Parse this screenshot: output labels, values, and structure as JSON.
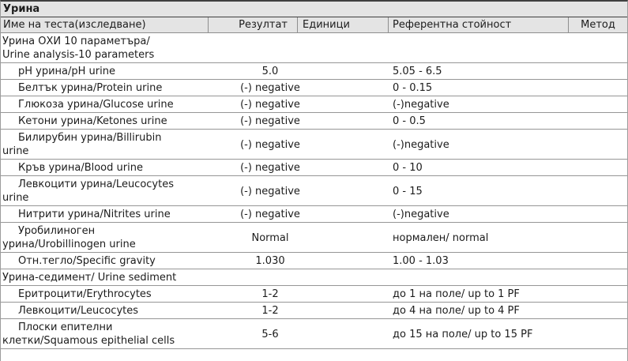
{
  "table": {
    "title": "Урина",
    "columns": {
      "name": "Име на теста(изследване)",
      "result": "Резултат",
      "units": "Единици",
      "reference": "Референтна стойност",
      "method": "Метод"
    },
    "colors": {
      "header_background": "#e4e4e4",
      "dark_border": "#3f3f3f",
      "row_separator": "#969696",
      "text": "#1c1c1c"
    },
    "rows": [
      {
        "type": "section",
        "name": "Урина ОХИ 10 параметъра/\nUrine analysis-10 parameters",
        "result": "",
        "units": "",
        "reference": "",
        "method": ""
      },
      {
        "type": "test",
        "name": "pH урина/pH urine",
        "result": "5.0",
        "units": "",
        "reference": "5.05 - 6.5",
        "method": ""
      },
      {
        "type": "test",
        "name": "Белтък урина/Protein urine",
        "result": "(-) negative",
        "units": "",
        "reference": "0 - 0.15",
        "method": ""
      },
      {
        "type": "test",
        "name": "Глюкоза урина/Glucose urine",
        "result": "(-) negative",
        "units": "",
        "reference": "(-)negative",
        "method": ""
      },
      {
        "type": "test",
        "name": "Кетони урина/Ketones urine",
        "result": "(-) negative",
        "units": "",
        "reference": "0 - 0.5",
        "method": ""
      },
      {
        "type": "test",
        "name": "Билирубин урина/Billirubin\nurine",
        "result": "(-) negative",
        "units": "",
        "reference": "(-)negative",
        "method": ""
      },
      {
        "type": "test",
        "name": "Кръв урина/Blood urine",
        "result": "(-) negative",
        "units": "",
        "reference": "0 - 10",
        "method": ""
      },
      {
        "type": "test",
        "name": "Левкоцити урина/Leucocytes\nurine",
        "result": "(-) negative",
        "units": "",
        "reference": "0 - 15",
        "method": ""
      },
      {
        "type": "test",
        "name": "Нитрити урина/Nitrites urine",
        "result": "(-) negative",
        "units": "",
        "reference": "(-)negative",
        "method": ""
      },
      {
        "type": "test",
        "name": "Уробилиноген\nурина/Urobillinogen urine",
        "result": "Normal",
        "units": "",
        "reference": "нормален/ normal",
        "method": ""
      },
      {
        "type": "test",
        "name": "Отн.тегло/Specific gravity",
        "result": "1.030",
        "units": "",
        "reference": "1.00 - 1.03",
        "method": ""
      },
      {
        "type": "section",
        "name": "Урина-седимент/ Urine sediment",
        "result": "",
        "units": "",
        "reference": "",
        "method": ""
      },
      {
        "type": "test",
        "name": "Еритроцити/Erythrocytes",
        "result": "1-2",
        "units": "",
        "reference": "до 1 на поле/ up to 1 PF",
        "method": ""
      },
      {
        "type": "test",
        "name": "Левкоцити/Leucocytes",
        "result": "1-2",
        "units": "",
        "reference": "до 4 на поле/ up to 4 PF",
        "method": ""
      },
      {
        "type": "test",
        "name": "Плоски епителни\nклетки/Squamous epithelial cells",
        "result": "5-6",
        "units": "",
        "reference": "до 15 на поле/ up to 15 PF",
        "method": ""
      }
    ]
  }
}
